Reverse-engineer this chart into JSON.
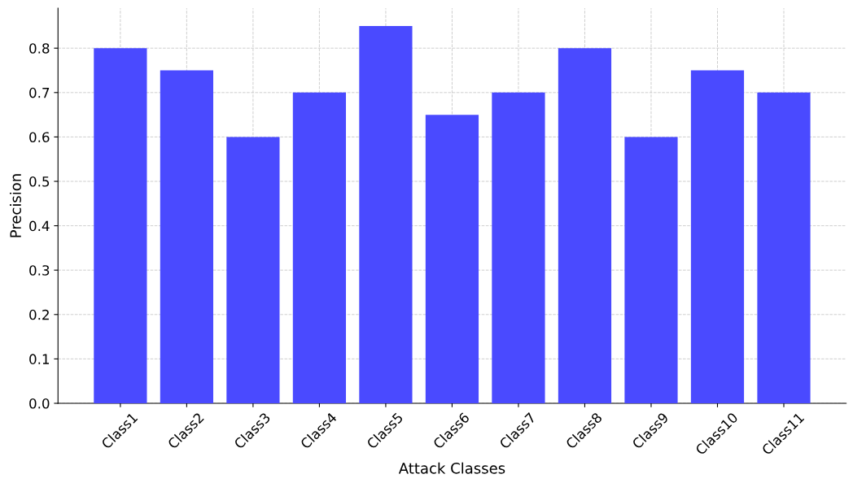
{
  "chart_data": {
    "type": "bar",
    "xlabel": "Attack Classes",
    "ylabel": "Precision",
    "categories": [
      "Class1",
      "Class2",
      "Class3",
      "Class4",
      "Class5",
      "Class6",
      "Class7",
      "Class8",
      "Class9",
      "Class10",
      "Class11"
    ],
    "values": [
      0.8,
      0.75,
      0.6,
      0.7,
      0.85,
      0.65,
      0.7,
      0.8,
      0.6,
      0.75,
      0.7
    ],
    "color": "#4a4aff",
    "ylim": [
      0,
      0.89
    ],
    "yticks": [
      {
        "value": 0,
        "label": "0.0"
      },
      0.1,
      0.2,
      0.3,
      0.4,
      0.5,
      0.6,
      0.7,
      0.8
    ],
    "grid": true,
    "line_style": "dashed"
  }
}
